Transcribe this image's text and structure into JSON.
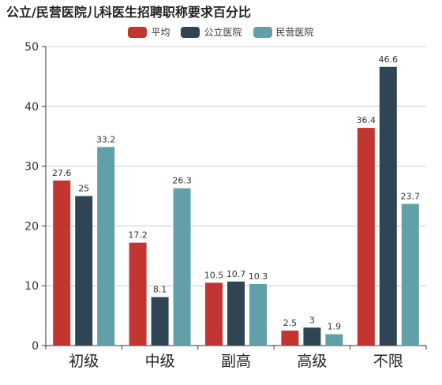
{
  "title": "公立/民营医院儿科医生招聘职称要求百分比",
  "colors": {
    "平均": "#c23531",
    "公立医院": "#2f4554",
    "民营医院": "#61a0a8"
  },
  "chart_data": {
    "type": "bar",
    "title": "公立/民营医院儿科医生招聘职称要求百分比",
    "categories": [
      "初级",
      "中级",
      "副高",
      "高级",
      "不限"
    ],
    "series": [
      {
        "name": "平均",
        "values": [
          27.6,
          17.2,
          10.5,
          2.5,
          36.4
        ]
      },
      {
        "name": "公立医院",
        "values": [
          25,
          8.1,
          10.7,
          3,
          46.6
        ]
      },
      {
        "name": "民营医院",
        "values": [
          33.2,
          26.3,
          10.3,
          1.9,
          23.7
        ]
      }
    ],
    "ylim": [
      0,
      50
    ],
    "yticks": [
      0,
      10,
      20,
      30,
      40,
      50
    ],
    "grid": true,
    "legend_position": "top-center",
    "xlabel": "",
    "ylabel": ""
  }
}
